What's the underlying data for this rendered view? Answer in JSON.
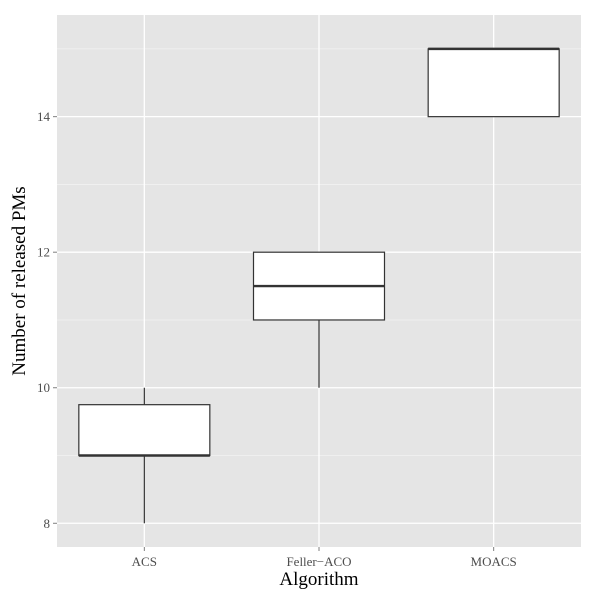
{
  "chart_data": {
    "type": "box",
    "xlabel": "Algorithm",
    "ylabel": "Number of released PMs",
    "categories": [
      "ACS",
      "Feller−ACO",
      "MOACS"
    ],
    "boxes": [
      {
        "category": "ACS",
        "min": 8,
        "q1": 9,
        "median": 9,
        "q3": 9.75,
        "max": 10
      },
      {
        "category": "Feller−ACO",
        "min": 10,
        "q1": 11,
        "median": 11.5,
        "q3": 12,
        "max": 12
      },
      {
        "category": "MOACS",
        "min": 14,
        "q1": 14,
        "median": 15,
        "q3": 15,
        "max": 15
      }
    ],
    "y_ticks": [
      8,
      10,
      12,
      14
    ],
    "ylim": [
      7.65,
      15.5
    ],
    "grid": true,
    "colors": {
      "panel_background": "#e5e5e5",
      "grid_major": "#ffffff",
      "grid_minor": "#f2f2f2",
      "box_fill": "#ffffff",
      "box_stroke": "#333333"
    }
  }
}
